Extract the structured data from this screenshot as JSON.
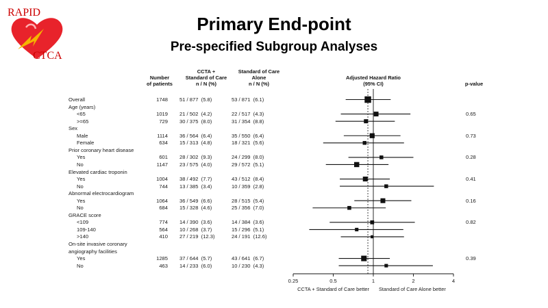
{
  "logo": {
    "top_text": "RAPID",
    "bottom_text": "CTCA",
    "heart_color": "#e8232b",
    "text_color": "#cc0000"
  },
  "title": "Primary End-point",
  "subtitle": "Pre-specified Subgroup Analyses",
  "headers": {
    "n_line1": "Number",
    "n_line2": "of patients",
    "c1_line1": "CCTA +",
    "c1_line2": "Standard of Care",
    "c1_line3": "n / N (%)",
    "c2_line1": "Standard of Care",
    "c2_line2": "Alone",
    "c2_line3": "n / N (%)",
    "hr_line1": "Adjusted Hazard Ratio",
    "hr_line2": "(95% CI)",
    "pval": "p-value"
  },
  "chart_data": {
    "type": "forest",
    "xlabel": "Adjusted Hazard Ratio (95% CI)",
    "xscale": "log",
    "xlim": [
      0.25,
      4
    ],
    "xticks": [
      0.25,
      0.5,
      1,
      2,
      4
    ],
    "xtick_labels": [
      "0.25",
      "0.5",
      "1",
      "2",
      "4"
    ],
    "overall_reference": 0.91,
    "left_direction_label": "CCTA + Standard of Care better",
    "right_direction_label": "Standard of Care Alone better",
    "rows": [
      {
        "label": "Overall",
        "indent": false,
        "n": "1748",
        "ccta": "51 / 877  (5.8)",
        "soc": "53 / 871  (6.1)",
        "hr": 0.91,
        "lo": 0.62,
        "hi": 1.35,
        "p": "",
        "weight": 1.0
      },
      {
        "label": "Age (years)",
        "indent": false,
        "header": true
      },
      {
        "label": "<65",
        "indent": true,
        "n": "1019",
        "ccta": "21 / 502  (4.2)",
        "soc": "22 / 517  (4.3)",
        "hr": 1.05,
        "lo": 0.57,
        "hi": 1.9,
        "p": "0.65",
        "weight": 0.6
      },
      {
        "label": ">=65",
        "indent": true,
        "n": "729",
        "ccta": "30 / 375  (8.0)",
        "soc": "31 / 354  (8.8)",
        "hr": 0.88,
        "lo": 0.52,
        "hi": 1.45,
        "p": "",
        "weight": 0.45
      },
      {
        "label": "Sex",
        "indent": false,
        "header": true
      },
      {
        "label": "Male",
        "indent": true,
        "n": "1114",
        "ccta": "36 / 564  (6.4)",
        "soc": "35 / 550  (6.4)",
        "hr": 0.98,
        "lo": 0.6,
        "hi": 1.6,
        "p": "0.73",
        "weight": 0.65
      },
      {
        "label": "Female",
        "indent": true,
        "n": "634",
        "ccta": "15 / 313  (4.8)",
        "soc": "18 / 321  (5.6)",
        "hr": 0.86,
        "lo": 0.42,
        "hi": 1.7,
        "p": "",
        "weight": 0.38
      },
      {
        "label": "Prior coronary heart disease",
        "indent": false,
        "header": true
      },
      {
        "label": "Yes",
        "indent": true,
        "n": "601",
        "ccta": "28 / 302  (9.3)",
        "soc": "24 / 299  (8.0)",
        "hr": 1.15,
        "lo": 0.65,
        "hi": 2.0,
        "p": "0.28",
        "weight": 0.38
      },
      {
        "label": "No",
        "indent": true,
        "n": "1147",
        "ccta": "23 / 575  (4.0)",
        "soc": "29 / 572  (5.1)",
        "hr": 0.75,
        "lo": 0.44,
        "hi": 1.3,
        "p": "",
        "weight": 0.68
      },
      {
        "label": "Elevated cardiac troponin",
        "indent": false,
        "header": true
      },
      {
        "label": "Yes",
        "indent": true,
        "n": "1004",
        "ccta": "38 / 492  (7.7)",
        "soc": "43 / 512  (8.4)",
        "hr": 0.87,
        "lo": 0.56,
        "hi": 1.33,
        "p": "0.41",
        "weight": 0.62
      },
      {
        "label": "No",
        "indent": true,
        "n": "744",
        "ccta": "13 / 385  (3.4)",
        "soc": "10 / 359  (2.8)",
        "hr": 1.25,
        "lo": 0.56,
        "hi": 2.85,
        "p": "",
        "weight": 0.38
      },
      {
        "label": "Abnormal electrocardiogram",
        "indent": false,
        "header": true
      },
      {
        "label": "Yes",
        "indent": true,
        "n": "1064",
        "ccta": "36 / 549  (6.6)",
        "soc": "28 / 515  (5.4)",
        "hr": 1.18,
        "lo": 0.72,
        "hi": 1.93,
        "p": "0.16",
        "weight": 0.62
      },
      {
        "label": "No",
        "indent": true,
        "n": "684",
        "ccta": "15 / 328  (4.6)",
        "soc": "25 / 356  (7.0)",
        "hr": 0.66,
        "lo": 0.35,
        "hi": 1.24,
        "p": "",
        "weight": 0.4
      },
      {
        "label": "GRACE score",
        "indent": false,
        "header": true
      },
      {
        "label": "<109",
        "indent": true,
        "n": "774",
        "ccta": "14 / 390  (3.6)",
        "soc": "14 / 384  (3.6)",
        "hr": 0.98,
        "lo": 0.47,
        "hi": 2.05,
        "p": "0.82",
        "weight": 0.42
      },
      {
        "label": "109-140",
        "indent": true,
        "n": "564",
        "ccta": "10 / 268  (3.7)",
        "soc": "15 / 296  (5.1)",
        "hr": 0.75,
        "lo": 0.33,
        "hi": 1.68,
        "p": "",
        "weight": 0.32
      },
      {
        "label": ">140",
        "indent": true,
        "n": "410",
        "ccta": "27 / 219  (12.3)",
        "soc": "24 / 191  (12.6)",
        "hr": 0.98,
        "lo": 0.57,
        "hi": 1.7,
        "p": "",
        "weight": 0.22
      },
      {
        "label": "On-site invasive coronary",
        "indent": false,
        "header": true
      },
      {
        "label": "angiography facilities",
        "indent": false,
        "header": true
      },
      {
        "label": "Yes",
        "indent": true,
        "n": "1285",
        "ccta": "37 / 644  (5.7)",
        "soc": "43 / 641  (6.7)",
        "hr": 0.85,
        "lo": 0.55,
        "hi": 1.33,
        "p": "0.39",
        "weight": 0.78
      },
      {
        "label": "No",
        "indent": true,
        "n": "463",
        "ccta": "14 / 233  (6.0)",
        "soc": "10 / 230  (4.3)",
        "hr": 1.25,
        "lo": 0.55,
        "hi": 2.8,
        "p": "",
        "weight": 0.32
      }
    ]
  }
}
